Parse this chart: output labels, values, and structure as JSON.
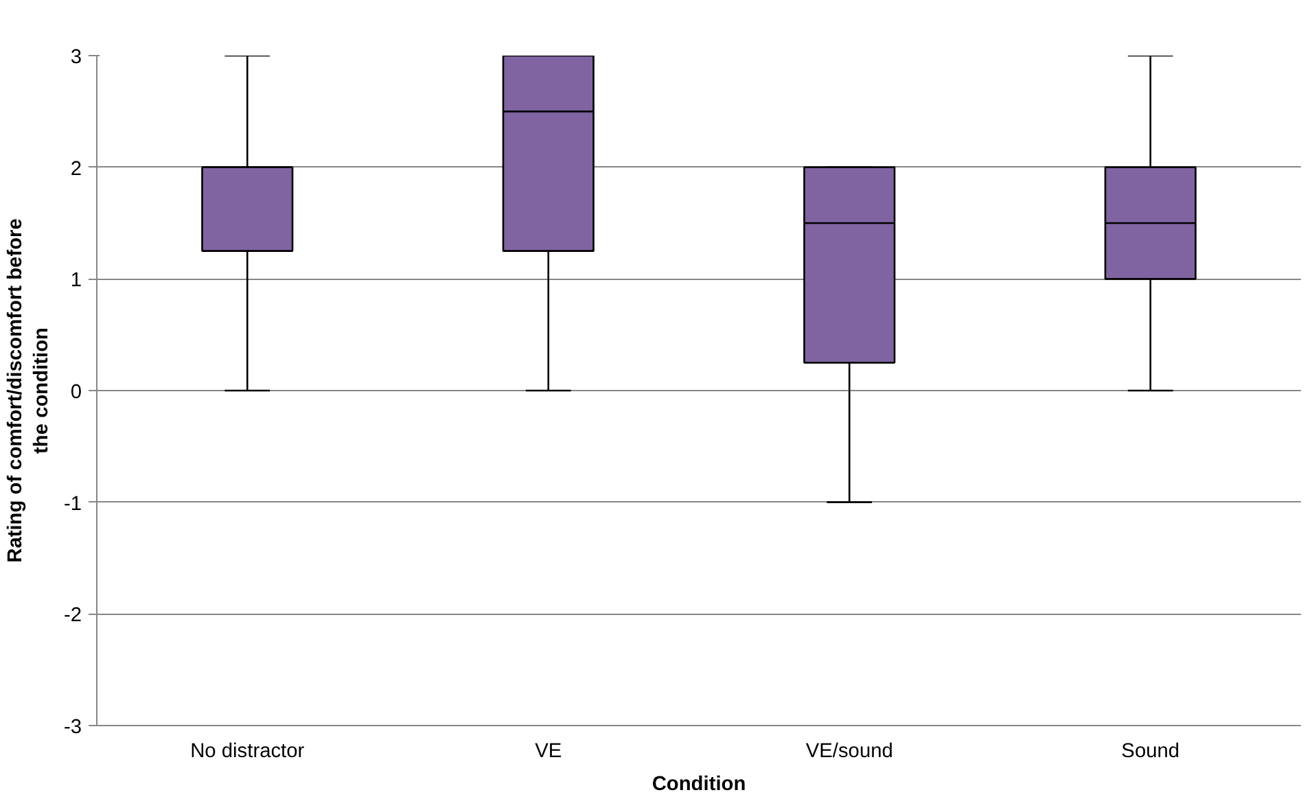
{
  "chart_data": {
    "type": "box",
    "xlabel": "Condition",
    "ylabel": "Rating of comfort/discomfort before the condition",
    "categories": [
      "No distractor",
      "VE",
      "VE/sound",
      "Sound"
    ],
    "series": [
      {
        "color": "#8064a2",
        "boxes": [
          {
            "low": 0,
            "q1": 1.25,
            "median": 2,
            "q3": 2,
            "high": 3
          },
          {
            "low": 0,
            "q1": 1.25,
            "median": 2.5,
            "q3": 3,
            "high": 3
          },
          {
            "low": -1,
            "q1": 0.25,
            "median": 1.5,
            "q3": 2,
            "high": 2
          },
          {
            "low": 0,
            "q1": 1,
            "median": 1.5,
            "q3": 2,
            "high": 3
          }
        ]
      }
    ],
    "ylim": [
      -3,
      3
    ],
    "yticks": [
      -3,
      -2,
      -1,
      0,
      1,
      2,
      3
    ],
    "grid": "y"
  }
}
